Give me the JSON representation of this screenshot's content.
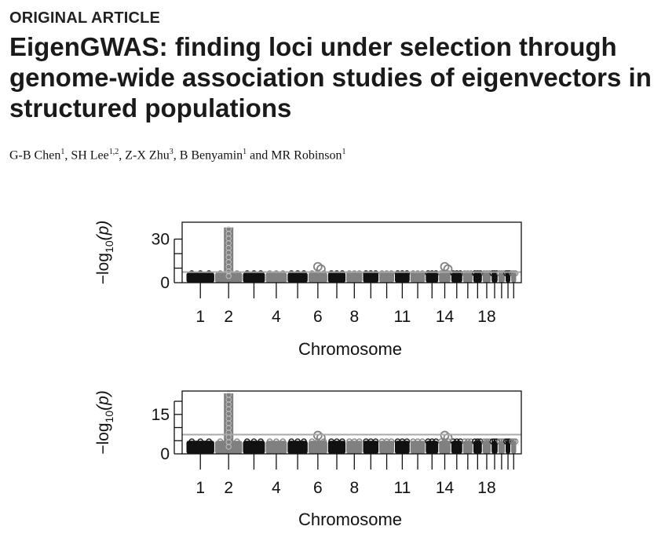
{
  "article_type": "ORIGINAL ARTICLE",
  "title_lines": [
    "EigenGWAS: finding loci under selection through",
    "genome-wide association studies of eigenvectors in",
    "structured populations"
  ],
  "authors": [
    {
      "name": "G-B Chen",
      "aff": "1",
      "sep": ", "
    },
    {
      "name": "SH Lee",
      "aff": "1,2",
      "sep": ", "
    },
    {
      "name": "Z-X Zhu",
      "aff": "3",
      "sep": ", "
    },
    {
      "name": "B Benyamin",
      "aff": "1",
      "sep": " and "
    },
    {
      "name": "MR Robinson",
      "aff": "1",
      "sep": ""
    }
  ],
  "colors": {
    "dark": "#111111",
    "grey": "#808080",
    "threshold": "#aaaaaa"
  },
  "chart_data": [
    {
      "type": "scatter",
      "subtype": "manhattan",
      "xlabel": "Chromosome",
      "ylabel_prefix": "−log",
      "ylabel_sub": "10",
      "ylabel_suffix": "(p)",
      "ylim": [
        0,
        40
      ],
      "y_ticks": [
        0,
        10,
        20,
        30
      ],
      "y_tick_labels": [
        "0",
        "",
        "",
        "30"
      ],
      "x_tick_labels": [
        "1",
        "2",
        "4",
        "6",
        "8",
        "11",
        "14",
        "18"
      ],
      "chromosomes": [
        1,
        2,
        3,
        4,
        5,
        6,
        7,
        8,
        9,
        10,
        11,
        12,
        13,
        14,
        15,
        16,
        17,
        18,
        19,
        20,
        21,
        22
      ],
      "threshold": 7.3,
      "baseline_max": 7,
      "peaks": [
        {
          "chr": 2,
          "value": 38
        },
        {
          "chr": 6,
          "value": 11
        },
        {
          "chr": 14,
          "value": 11
        }
      ]
    },
    {
      "type": "scatter",
      "subtype": "manhattan",
      "xlabel": "Chromosome",
      "ylabel_prefix": "−log",
      "ylabel_sub": "10",
      "ylabel_suffix": "(p)",
      "ylim": [
        0,
        23
      ],
      "y_ticks": [
        0,
        5,
        10,
        15,
        20
      ],
      "y_tick_labels": [
        "0",
        "",
        "",
        "15",
        ""
      ],
      "x_tick_labels": [
        "1",
        "2",
        "4",
        "6",
        "8",
        "11",
        "14",
        "18"
      ],
      "chromosomes": [
        1,
        2,
        3,
        4,
        5,
        6,
        7,
        8,
        9,
        10,
        11,
        12,
        13,
        14,
        15,
        16,
        17,
        18,
        19,
        20,
        21,
        22
      ],
      "threshold": 7.3,
      "baseline_max": 5,
      "peaks": [
        {
          "chr": 2,
          "value": 23
        },
        {
          "chr": 6,
          "value": 7
        },
        {
          "chr": 14,
          "value": 7
        }
      ]
    }
  ]
}
